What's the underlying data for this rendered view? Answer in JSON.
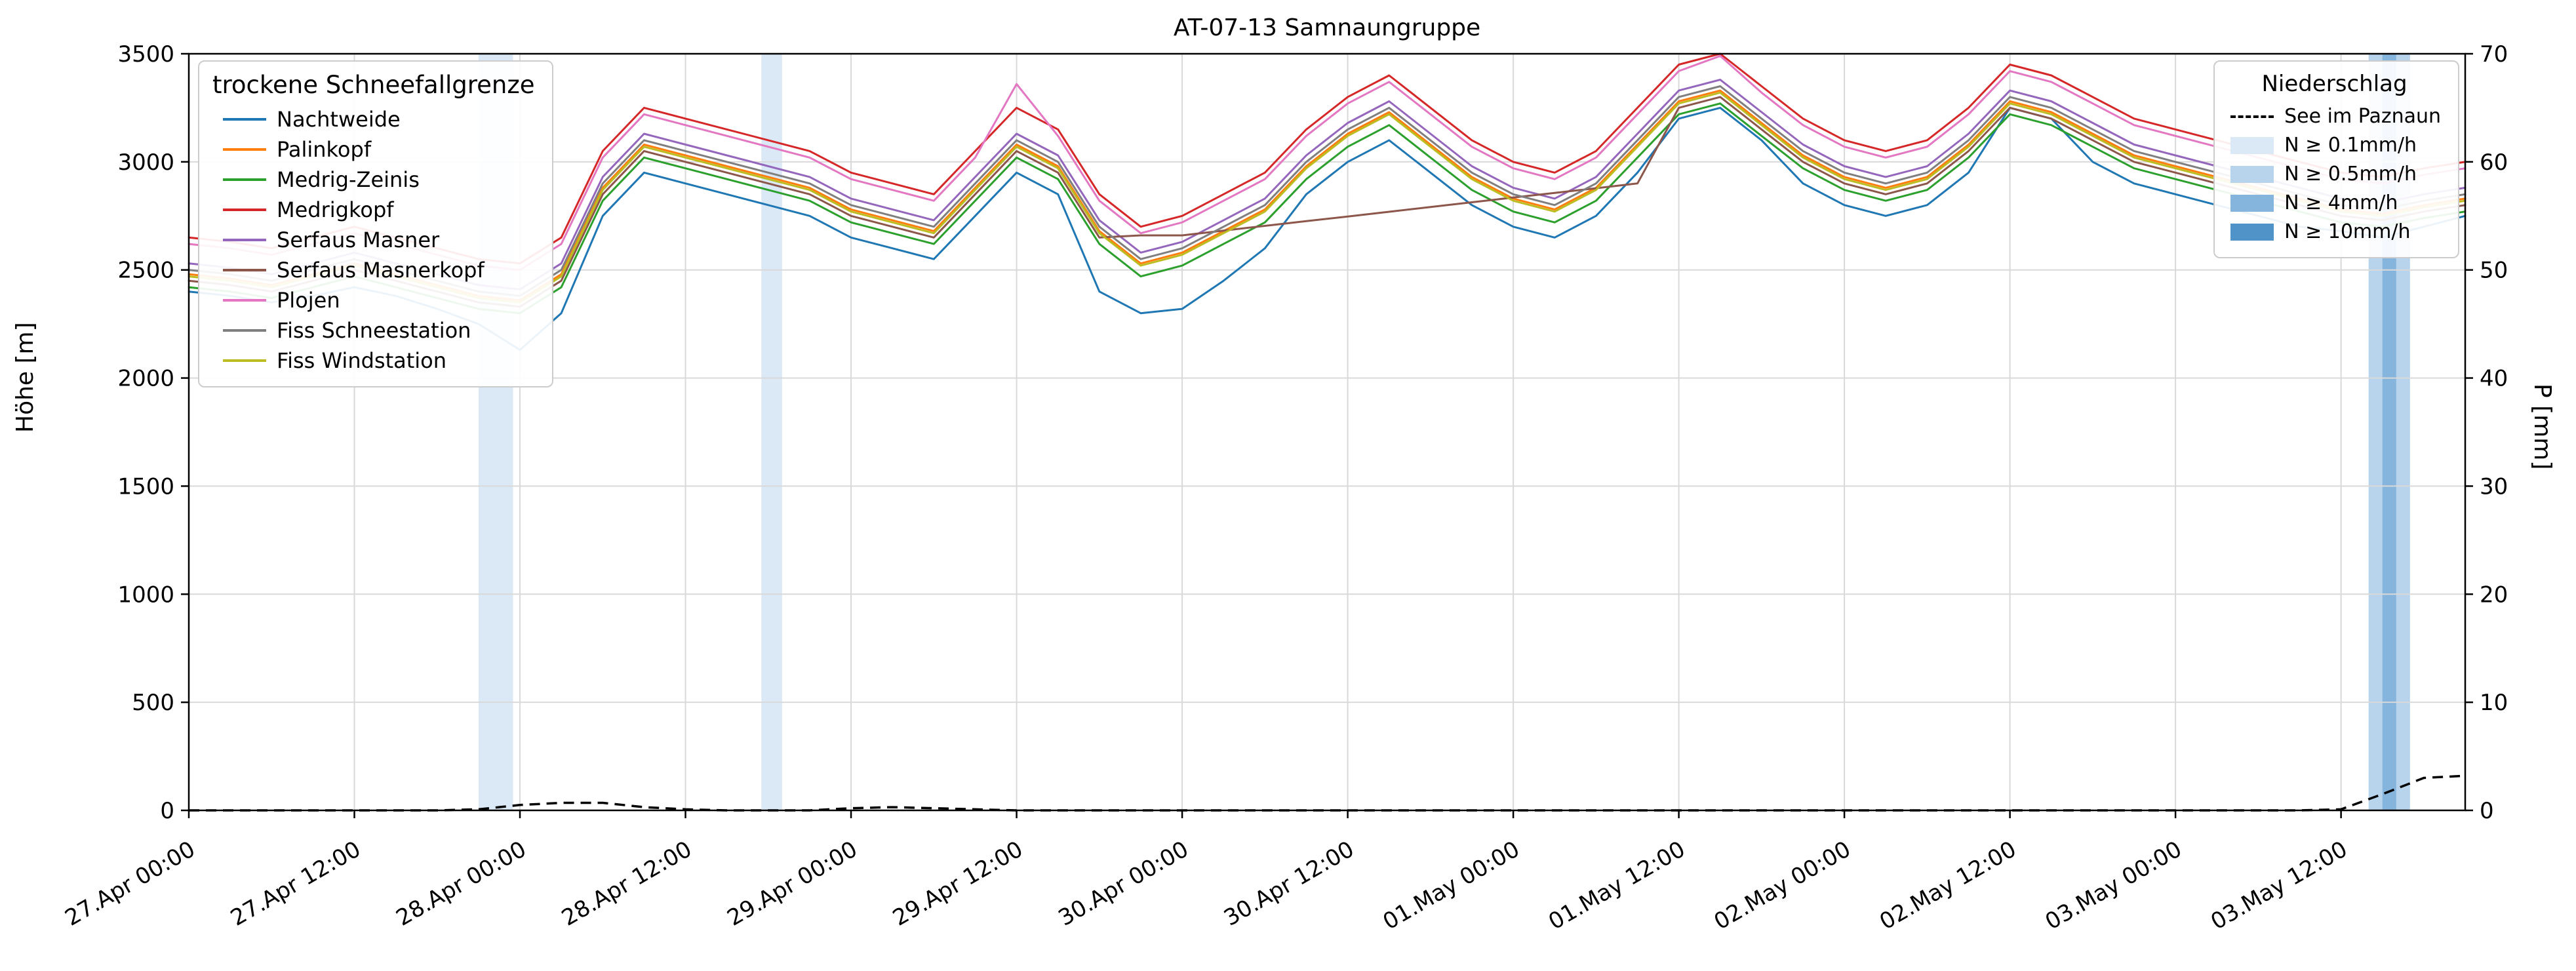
{
  "chart_data": {
    "type": "line",
    "title": "AT-07-13 Samnaungruppe",
    "ylabel_left": "Höhe [m]",
    "ylabel_right": "P [mm]",
    "ylim_left": [
      0,
      3500
    ],
    "yticks_left": [
      0,
      500,
      1000,
      1500,
      2000,
      2500,
      3000,
      3500
    ],
    "ylim_right": [
      0,
      70
    ],
    "yticks_right": [
      0,
      10,
      20,
      30,
      40,
      50,
      60,
      70
    ],
    "xlim": [
      0,
      165
    ],
    "grid": true,
    "legend_left_title": "trockene Schneefallgrenze",
    "x_hours": [
      0,
      3,
      6,
      9,
      12,
      15,
      18,
      21,
      24,
      27,
      30,
      33,
      36,
      39,
      42,
      45,
      48,
      51,
      54,
      57,
      60,
      63,
      66,
      69,
      72,
      75,
      78,
      81,
      84,
      87,
      90,
      93,
      96,
      99,
      102,
      105,
      108,
      111,
      114,
      117,
      120,
      123,
      126,
      129,
      132,
      135,
      138,
      141,
      144,
      147,
      150,
      153,
      156,
      159,
      162,
      165
    ],
    "xticks": [
      {
        "hour": 0,
        "label": "27.Apr 00:00"
      },
      {
        "hour": 12,
        "label": "27.Apr 12:00"
      },
      {
        "hour": 24,
        "label": "28.Apr 00:00"
      },
      {
        "hour": 36,
        "label": "28.Apr 12:00"
      },
      {
        "hour": 48,
        "label": "29.Apr 00:00"
      },
      {
        "hour": 60,
        "label": "29.Apr 12:00"
      },
      {
        "hour": 72,
        "label": "30.Apr 00:00"
      },
      {
        "hour": 84,
        "label": "30.Apr 12:00"
      },
      {
        "hour": 96,
        "label": "01.May 00:00"
      },
      {
        "hour": 108,
        "label": "01.May 12:00"
      },
      {
        "hour": 120,
        "label": "02.May 00:00"
      },
      {
        "hour": 132,
        "label": "02.May 12:00"
      },
      {
        "hour": 144,
        "label": "03.May 00:00"
      },
      {
        "hour": 156,
        "label": "03.May 12:00"
      }
    ],
    "series": [
      {
        "name": "Nachtweide",
        "color": "#1f77b4",
        "values": [
          2400,
          2380,
          2350,
          2380,
          2420,
          2380,
          2320,
          2250,
          2130,
          2300,
          2750,
          2950,
          2900,
          2850,
          2800,
          2750,
          2650,
          2600,
          2550,
          2750,
          2950,
          2850,
          2400,
          2300,
          2320,
          2450,
          2600,
          2850,
          3000,
          3100,
          2950,
          2800,
          2700,
          2650,
          2750,
          2950,
          3200,
          3250,
          3100,
          2900,
          2800,
          2750,
          2800,
          2950,
          3250,
          3200,
          3000,
          2900,
          2850,
          2800,
          2750,
          2700,
          2680,
          2650,
          2700,
          2750
        ]
      },
      {
        "name": "Palinkopf",
        "color": "#ff7f0e",
        "values": [
          2480,
          2460,
          2430,
          2480,
          2530,
          2480,
          2430,
          2380,
          2360,
          2480,
          2880,
          3080,
          3030,
          2980,
          2930,
          2880,
          2780,
          2730,
          2680,
          2880,
          3080,
          2980,
          2680,
          2530,
          2580,
          2680,
          2780,
          2980,
          3130,
          3230,
          3080,
          2930,
          2830,
          2780,
          2880,
          3080,
          3280,
          3330,
          3180,
          3030,
          2930,
          2880,
          2930,
          3080,
          3280,
          3230,
          3130,
          3030,
          2980,
          2930,
          2880,
          2830,
          2780,
          2760,
          2800,
          2830
        ]
      },
      {
        "name": "Medrig-Zeinis",
        "color": "#2ca02c",
        "values": [
          2420,
          2400,
          2370,
          2420,
          2470,
          2420,
          2370,
          2320,
          2300,
          2420,
          2820,
          3020,
          2970,
          2920,
          2870,
          2820,
          2720,
          2670,
          2620,
          2820,
          3020,
          2920,
          2620,
          2470,
          2520,
          2620,
          2720,
          2920,
          3070,
          3170,
          3020,
          2870,
          2770,
          2720,
          2820,
          3020,
          3220,
          3270,
          3120,
          2970,
          2870,
          2820,
          2870,
          3020,
          3220,
          3170,
          3070,
          2970,
          2920,
          2870,
          2820,
          2770,
          2720,
          2700,
          2740,
          2770
        ]
      },
      {
        "name": "Medrigkopf",
        "color": "#d62728",
        "values": [
          2650,
          2630,
          2600,
          2650,
          2700,
          2650,
          2600,
          2550,
          2530,
          2650,
          3050,
          3250,
          3200,
          3150,
          3100,
          3050,
          2950,
          2900,
          2850,
          3050,
          3250,
          3150,
          2850,
          2700,
          2750,
          2850,
          2950,
          3150,
          3300,
          3400,
          3250,
          3100,
          3000,
          2950,
          3050,
          3250,
          3450,
          3500,
          3350,
          3200,
          3100,
          3050,
          3100,
          3250,
          3450,
          3400,
          3300,
          3200,
          3150,
          3100,
          3050,
          3000,
          2950,
          2930,
          2970,
          3000
        ]
      },
      {
        "name": "Serfaus Masner",
        "color": "#9467bd",
        "values": [
          2530,
          2510,
          2480,
          2530,
          2580,
          2530,
          2480,
          2430,
          2410,
          2530,
          2930,
          3130,
          3080,
          3030,
          2980,
          2930,
          2830,
          2780,
          2730,
          2930,
          3130,
          3030,
          2730,
          2580,
          2630,
          2730,
          2830,
          3030,
          3180,
          3280,
          3130,
          2980,
          2880,
          2830,
          2930,
          3130,
          3330,
          3380,
          3230,
          3080,
          2980,
          2930,
          2980,
          3130,
          3330,
          3280,
          3180,
          3080,
          3030,
          2980,
          2930,
          2880,
          2830,
          2810,
          2850,
          2880
        ]
      },
      {
        "name": "Serfaus Masnerkopf",
        "color": "#8c564b",
        "values": [
          2450,
          2430,
          2400,
          2450,
          2500,
          2450,
          2400,
          2350,
          2330,
          2450,
          2850,
          3050,
          3000,
          2950,
          2900,
          2850,
          2750,
          2700,
          2650,
          2850,
          3050,
          2950,
          2650,
          2660,
          2660,
          2682,
          2704,
          2726,
          2747,
          2769,
          2791,
          2813,
          2835,
          2856,
          2878,
          2900,
          3250,
          3300,
          3150,
          3000,
          2900,
          2850,
          2900,
          3050,
          3250,
          3200,
          3100,
          3000,
          2950,
          2900,
          2850,
          2800,
          2750,
          2730,
          2770,
          2800
        ]
      },
      {
        "name": "Plojen",
        "color": "#e377c2",
        "values": [
          2620,
          2600,
          2570,
          2620,
          2670,
          2620,
          2570,
          2520,
          2500,
          2620,
          3020,
          3220,
          3170,
          3120,
          3070,
          3020,
          2920,
          2870,
          2820,
          3020,
          3360,
          3120,
          2820,
          2670,
          2720,
          2820,
          2920,
          3120,
          3270,
          3370,
          3220,
          3070,
          2970,
          2920,
          3020,
          3220,
          3420,
          3490,
          3320,
          3170,
          3070,
          3020,
          3070,
          3220,
          3420,
          3370,
          3270,
          3170,
          3120,
          3070,
          3020,
          2970,
          2920,
          2900,
          2940,
          2970
        ]
      },
      {
        "name": "Fiss Schneestation",
        "color": "#7f7f7f",
        "values": [
          2500,
          2480,
          2450,
          2500,
          2550,
          2500,
          2450,
          2400,
          2380,
          2500,
          2900,
          3100,
          3050,
          3000,
          2950,
          2900,
          2800,
          2750,
          2700,
          2900,
          3100,
          3000,
          2700,
          2550,
          2600,
          2700,
          2800,
          3000,
          3150,
          3250,
          3100,
          2950,
          2850,
          2800,
          2900,
          3100,
          3300,
          3350,
          3200,
          3050,
          2950,
          2900,
          2950,
          3100,
          3300,
          3250,
          3150,
          3050,
          3000,
          2950,
          2900,
          2850,
          2800,
          2780,
          2820,
          2850
        ]
      },
      {
        "name": "Fiss Windstation",
        "color": "#bcbd22",
        "values": [
          2470,
          2450,
          2420,
          2470,
          2520,
          2470,
          2420,
          2370,
          2350,
          2470,
          2870,
          3070,
          3020,
          2970,
          2920,
          2870,
          2770,
          2720,
          2670,
          2870,
          3070,
          2970,
          2670,
          2520,
          2570,
          2670,
          2770,
          2970,
          3120,
          3220,
          3070,
          2920,
          2820,
          2770,
          2870,
          3070,
          3270,
          3320,
          3170,
          3020,
          2920,
          2870,
          2920,
          3070,
          3270,
          3220,
          3120,
          3020,
          2970,
          2920,
          2870,
          2820,
          2770,
          2750,
          2790,
          2820
        ]
      }
    ],
    "precip": {
      "legend_title": "Niederschlag",
      "line_name": "See im Paznaun",
      "line_color": "#000000",
      "values_mm": [
        0,
        0,
        0,
        0,
        0,
        0,
        0,
        0.1,
        0.5,
        0.7,
        0.7,
        0.3,
        0.1,
        0,
        0,
        0,
        0.2,
        0.3,
        0.2,
        0.1,
        0,
        0,
        0,
        0,
        0,
        0,
        0,
        0,
        0,
        0,
        0,
        0,
        0,
        0,
        0,
        0,
        0,
        0,
        0,
        0,
        0,
        0,
        0,
        0,
        0,
        0,
        0,
        0,
        0,
        0,
        0,
        0,
        0.1,
        1.5,
        3,
        3.2
      ],
      "band_levels": [
        {
          "label": "N ≥ 0.1mm/h",
          "color": "#dbe9f6"
        },
        {
          "label": "N ≥ 0.5mm/h",
          "color": "#b8d4ec"
        },
        {
          "label": "N ≥ 4mm/h",
          "color": "#85b5dc"
        },
        {
          "label": "N ≥ 10mm/h",
          "color": "#4f93c8"
        }
      ],
      "bands": [
        {
          "start_hour": 21,
          "end_hour": 23.5,
          "level_index": 0
        },
        {
          "start_hour": 41.5,
          "end_hour": 43,
          "level_index": 0
        },
        {
          "start_hour": 158,
          "end_hour": 161,
          "level_index": 1
        },
        {
          "start_hour": 159,
          "end_hour": 160,
          "level_index": 2
        }
      ]
    }
  }
}
